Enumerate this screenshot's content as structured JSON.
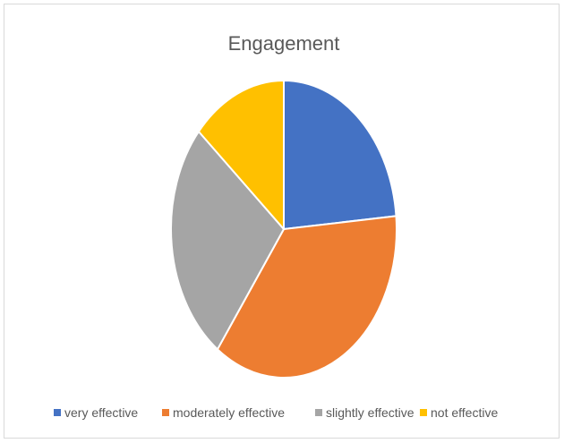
{
  "chart_data": {
    "type": "pie",
    "title": "Engagement",
    "categories": [
      "very effective",
      "moderately effective",
      "slightly effective",
      "not effective"
    ],
    "values": [
      23.6,
      36.4,
      26.4,
      13.6
    ],
    "colors": [
      "#4472C4",
      "#ED7D31",
      "#A5A5A5",
      "#FFC000"
    ],
    "legend_position": "bottom",
    "start_angle": "12 o'clock",
    "direction": "clockwise"
  }
}
